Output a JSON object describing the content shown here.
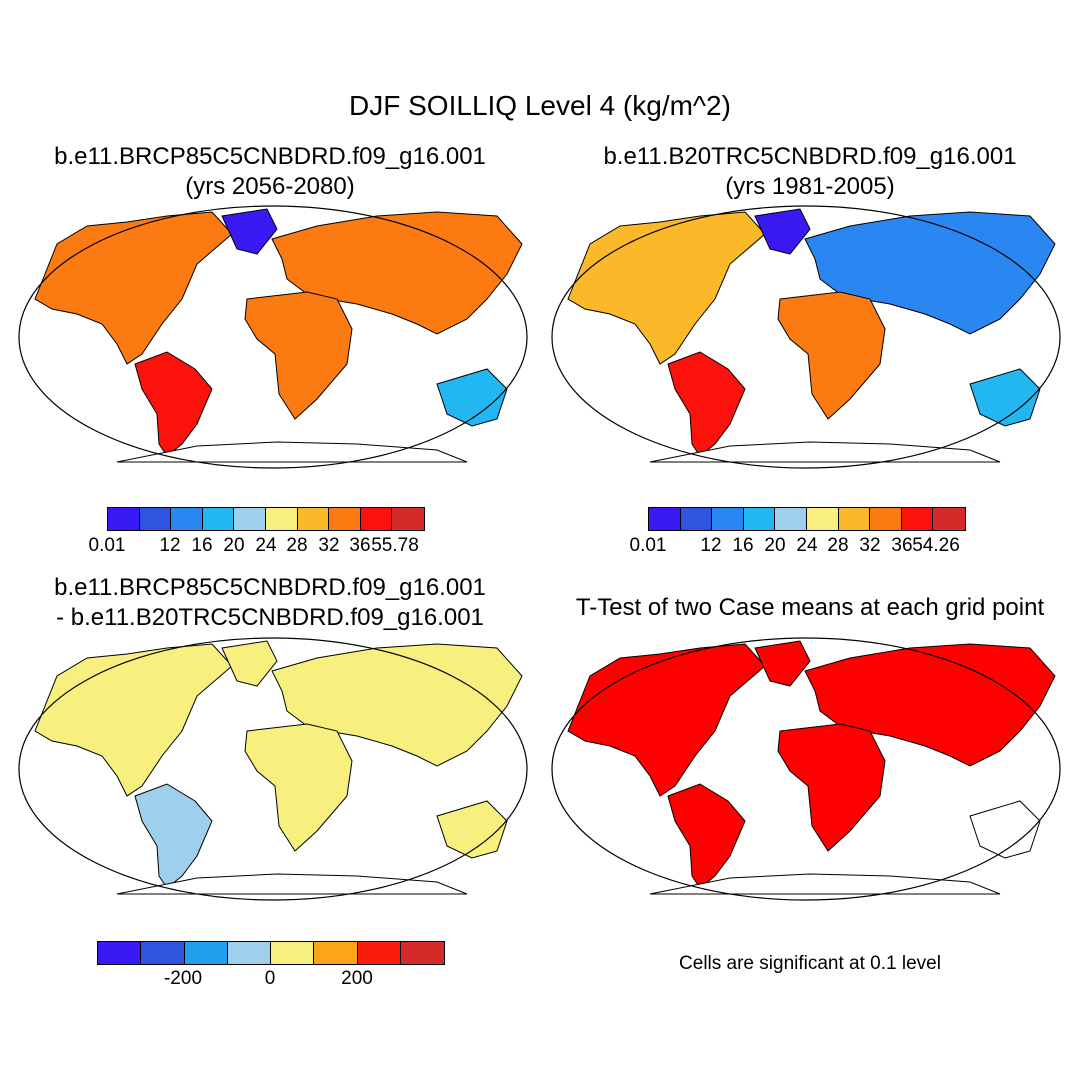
{
  "title": "DJF SOILLIQ Level 4 (kg/m^2)",
  "panels": [
    {
      "line1": "b.e11.BRCP85C5CNBDRD.f09_g16.001",
      "line2": "(yrs 2056-2080)"
    },
    {
      "line1": "b.e11.B20TRC5CNBDRD.f09_g16.001",
      "line2": "(yrs 1981-2005)"
    },
    {
      "line1": "b.e11.BRCP85C5CNBDRD.f09_g16.001",
      "line2": "- b.e11.B20TRC5CNBDRD.f09_g16.001"
    },
    {
      "line1": "T-Test of two Case means at each grid point"
    }
  ],
  "colorbar_abs": {
    "colors": [
      "#3a1af2",
      "#2f55e0",
      "#2a86f0",
      "#22b7f0",
      "#9ed0ee",
      "#f7ef7e",
      "#fbb829",
      "#fb7b12",
      "#fc120d",
      "#d42a2a"
    ],
    "labels": [
      "0.01",
      "12",
      "16",
      "20",
      "24",
      "28",
      "32",
      "36"
    ]
  },
  "colorbar_abs_max_1": "55.78",
  "colorbar_abs_max_2": "54.26",
  "colorbar_diff": {
    "colors": [
      "#3a1af2",
      "#2f55e0",
      "#22a0f0",
      "#9ed0ee",
      "#f7ef7e",
      "#fba51a",
      "#fc1c0d",
      "#d42a2a"
    ],
    "labels": [
      "-200",
      "0",
      "200"
    ]
  },
  "significance_note": "Cells are significant at 0.1 level",
  "significance_color": "#ff0000"
}
